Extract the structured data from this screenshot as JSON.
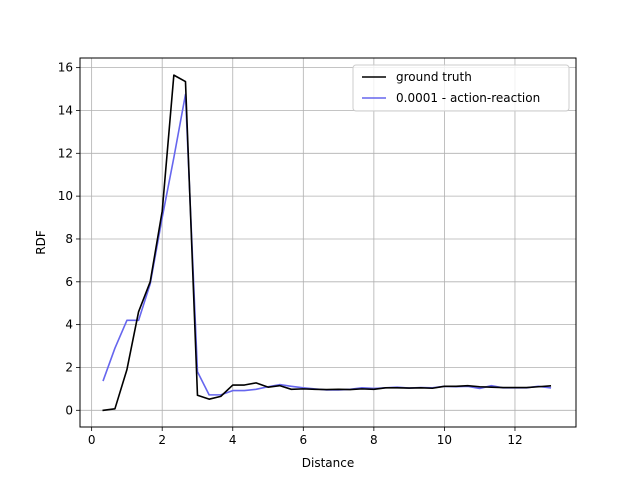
{
  "chart_data": {
    "type": "line",
    "title": "",
    "xlabel": "Distance",
    "ylabel": "RDF",
    "xlim": [
      -0.33,
      13.73
    ],
    "ylim": [
      -0.78,
      16.45
    ],
    "xticks": [
      0,
      2,
      4,
      6,
      8,
      10,
      12
    ],
    "yticks": [
      0,
      2,
      4,
      6,
      8,
      10,
      12,
      14,
      16
    ],
    "grid": true,
    "legend_position": "top-right",
    "series": [
      {
        "name": "ground truth",
        "color": "#000000",
        "x": [
          0.33,
          0.66,
          1.0,
          1.33,
          1.66,
          2.0,
          2.33,
          2.66,
          3.0,
          3.33,
          3.66,
          4.0,
          4.33,
          4.66,
          5.0,
          5.33,
          5.66,
          6.0,
          6.33,
          6.66,
          7.0,
          7.33,
          7.66,
          8.0,
          8.33,
          8.66,
          9.0,
          9.33,
          9.66,
          10.0,
          10.33,
          10.66,
          11.0,
          11.33,
          11.66,
          12.0,
          12.33,
          12.66,
          13.0
        ],
        "y": [
          0.0,
          0.07,
          1.9,
          4.6,
          6.0,
          9.3,
          15.65,
          15.35,
          0.7,
          0.52,
          0.65,
          1.18,
          1.18,
          1.28,
          1.08,
          1.15,
          0.98,
          1.0,
          0.98,
          0.97,
          0.98,
          0.97,
          1.0,
          0.98,
          1.05,
          1.05,
          1.04,
          1.05,
          1.03,
          1.12,
          1.12,
          1.15,
          1.1,
          1.08,
          1.06,
          1.06,
          1.06,
          1.1,
          1.14
        ]
      },
      {
        "name": "0.0001 - action-reaction",
        "color": "#6666ee",
        "x": [
          0.33,
          0.66,
          1.0,
          1.33,
          1.66,
          2.0,
          2.33,
          2.66,
          3.0,
          3.33,
          3.66,
          4.0,
          4.33,
          4.66,
          5.0,
          5.33,
          5.66,
          6.0,
          6.33,
          6.66,
          7.0,
          7.33,
          7.66,
          8.0,
          8.33,
          8.66,
          9.0,
          9.33,
          9.66,
          10.0,
          10.33,
          10.66,
          11.0,
          11.33,
          11.66,
          12.0,
          12.33,
          12.66,
          13.0
        ],
        "y": [
          1.4,
          2.9,
          4.2,
          4.2,
          5.9,
          9.0,
          11.8,
          14.75,
          1.8,
          0.72,
          0.72,
          0.92,
          0.92,
          0.98,
          1.1,
          1.2,
          1.12,
          1.05,
          1.0,
          0.95,
          0.95,
          0.98,
          1.05,
          1.02,
          1.05,
          1.08,
          1.04,
          1.06,
          1.05,
          1.12,
          1.1,
          1.12,
          1.02,
          1.15,
          1.05,
          1.05,
          1.05,
          1.12,
          1.05
        ]
      }
    ]
  }
}
